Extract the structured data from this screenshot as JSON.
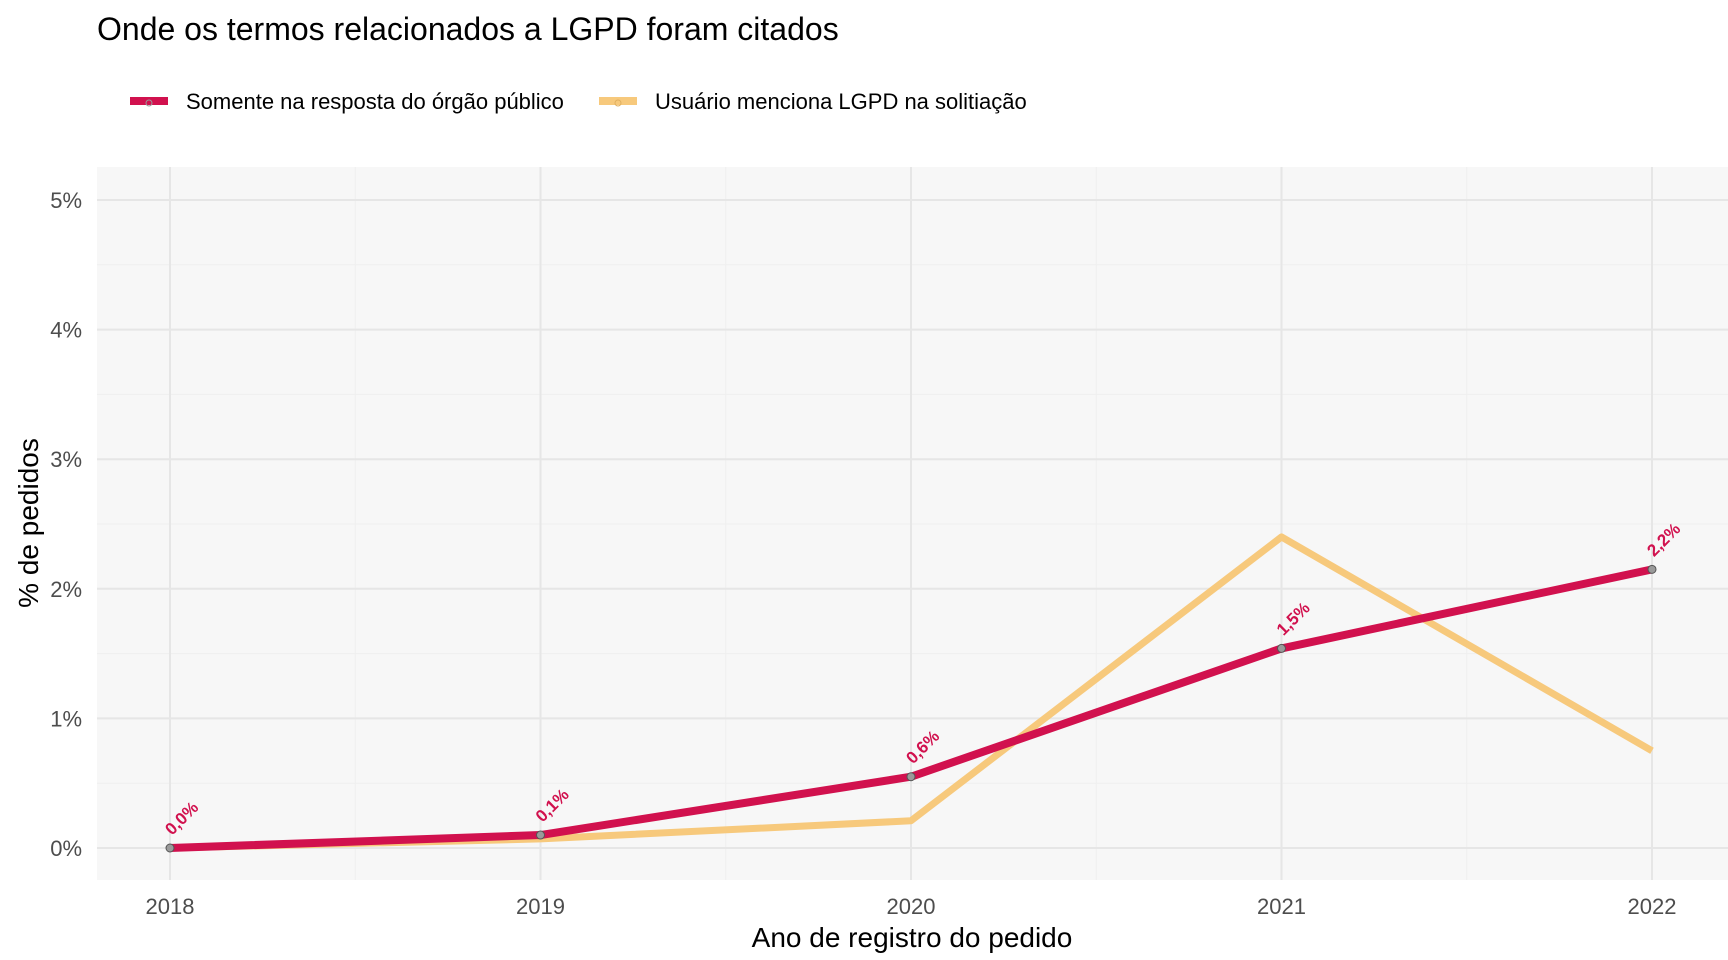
{
  "chart_data": {
    "type": "line",
    "title": "Onde os termos relacionados a LGPD foram citados",
    "xlabel": "Ano de registro do pedido",
    "ylabel": "% de pedidos",
    "x": [
      "2018",
      "2019",
      "2020",
      "2021",
      "2022"
    ],
    "y_ticks": [
      "0%",
      "1%",
      "2%",
      "3%",
      "4%",
      "5%"
    ],
    "ylim": [
      0,
      5.25
    ],
    "grid": true,
    "legend_position": "top-left",
    "series": [
      {
        "name": "Somente na resposta do órgão público",
        "color": "#d1114e",
        "values": [
          0.0,
          0.1,
          0.55,
          1.54,
          2.15
        ],
        "labels": [
          "0,0%",
          "0,1%",
          "0,6%",
          "1,5%",
          "2,2%"
        ]
      },
      {
        "name": "Usuário menciona LGPD na solitiação",
        "color": "#f7c97c",
        "values": [
          0.0,
          0.07,
          0.21,
          2.4,
          0.75
        ]
      }
    ]
  }
}
